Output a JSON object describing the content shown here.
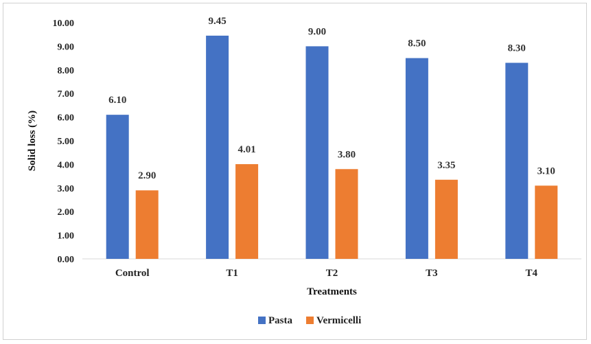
{
  "chart_data": {
    "type": "bar",
    "categories": [
      "Control",
      "T1",
      "T2",
      "T3",
      "T4"
    ],
    "series": [
      {
        "name": "Pasta",
        "values": [
          6.1,
          9.45,
          9.0,
          8.5,
          8.3
        ],
        "color": "#4472C4"
      },
      {
        "name": "Vermicelli",
        "values": [
          2.9,
          4.01,
          3.8,
          3.35,
          3.1
        ],
        "color": "#ED7D31"
      }
    ],
    "data_labels": [
      [
        "6.10",
        "9.45",
        "9.00",
        "8.50",
        "8.30"
      ],
      [
        "2.90",
        "4.01",
        "3.80",
        "3.35",
        "3.10"
      ]
    ],
    "title": "",
    "xlabel": "Treatments",
    "ylabel": "Solid loss (%)",
    "ylim": [
      0,
      10
    ],
    "yticks": [
      "0.00",
      "1.00",
      "2.00",
      "3.00",
      "4.00",
      "5.00",
      "6.00",
      "7.00",
      "8.00",
      "9.00",
      "10.00"
    ],
    "grid": false,
    "legend_position": "bottom"
  }
}
